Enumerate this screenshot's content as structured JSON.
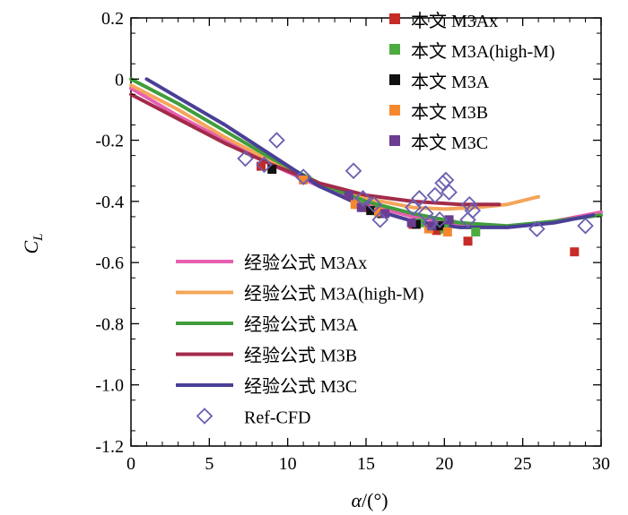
{
  "chart_data": {
    "type": "scatter",
    "xlabel_var": "α",
    "xlabel_unit": "/(°)",
    "ylabel_var": "C",
    "ylabel_sub": "L",
    "xlim": [
      0,
      30
    ],
    "ylim": [
      -1.2,
      0.2
    ],
    "xticks": [
      0,
      5,
      10,
      15,
      20,
      25,
      30
    ],
    "yticks": [
      -1.2,
      -1.0,
      -0.8,
      -0.6,
      -0.4,
      -0.2,
      0,
      0.2
    ],
    "ytick_labels": [
      "-1.2",
      "-1.0",
      "-0.8",
      "-0.6",
      "-0.4",
      "-0.2",
      "0",
      "0.2"
    ],
    "xtick_labels": [
      "0",
      "5",
      "10",
      "15",
      "20",
      "25",
      "30"
    ],
    "scatter_series": [
      {
        "name": "本文 M3Ax",
        "color": "#c62b27",
        "points": [
          [
            8.3,
            -0.285
          ],
          [
            14.9,
            -0.42
          ],
          [
            18.0,
            -0.475
          ],
          [
            19.5,
            -0.495
          ],
          [
            20.0,
            -0.49
          ],
          [
            21.5,
            -0.53
          ],
          [
            28.3,
            -0.565
          ]
        ]
      },
      {
        "name": "本文 M3A(high-M)",
        "color": "#4dac3f",
        "points": [
          [
            14.5,
            -0.41
          ],
          [
            15.5,
            -0.43
          ],
          [
            18.5,
            -0.47
          ],
          [
            20.0,
            -0.49
          ],
          [
            22.0,
            -0.5
          ]
        ]
      },
      {
        "name": "本文 M3A",
        "color": "#111111",
        "points": [
          [
            9.0,
            -0.295
          ],
          [
            15.3,
            -0.43
          ],
          [
            16.0,
            -0.44
          ],
          [
            18.2,
            -0.475
          ],
          [
            19.7,
            -0.48
          ]
        ]
      },
      {
        "name": "本文 M3B",
        "color": "#f5882e",
        "points": [
          [
            11.0,
            -0.33
          ],
          [
            14.3,
            -0.41
          ],
          [
            15.8,
            -0.435
          ],
          [
            19.0,
            -0.49
          ],
          [
            20.2,
            -0.5
          ]
        ]
      },
      {
        "name": "本文 M3C",
        "color": "#6a3d91",
        "points": [
          [
            13.9,
            -0.38
          ],
          [
            14.7,
            -0.42
          ],
          [
            16.2,
            -0.44
          ],
          [
            17.9,
            -0.47
          ],
          [
            19.2,
            -0.48
          ],
          [
            20.3,
            -0.46
          ]
        ]
      }
    ],
    "line_series": [
      {
        "name": "经验公式 M3Ax",
        "color": "#e75fb0",
        "x": [
          0,
          3,
          6,
          9,
          12,
          15,
          18,
          21,
          24,
          27,
          30
        ],
        "y": [
          -0.03,
          -0.12,
          -0.2,
          -0.28,
          -0.35,
          -0.41,
          -0.45,
          -0.475,
          -0.485,
          -0.465,
          -0.435
        ]
      },
      {
        "name": "经验公式 M3A(high-M)",
        "color": "#f5a55a",
        "x": [
          0,
          3,
          6,
          9,
          12,
          15,
          18,
          20,
          22,
          24,
          26
        ],
        "y": [
          -0.02,
          -0.1,
          -0.19,
          -0.27,
          -0.34,
          -0.39,
          -0.42,
          -0.425,
          -0.42,
          -0.41,
          -0.385
        ]
      },
      {
        "name": "经验公式 M3A",
        "color": "#3f9d3b",
        "x": [
          0,
          3,
          6,
          9,
          12,
          15,
          18,
          21,
          24,
          27,
          30
        ],
        "y": [
          0.0,
          -0.08,
          -0.17,
          -0.26,
          -0.34,
          -0.4,
          -0.44,
          -0.47,
          -0.48,
          -0.465,
          -0.445
        ]
      },
      {
        "name": "经验公式 M3B",
        "color": "#a32b4a",
        "x": [
          0,
          3,
          6,
          9,
          12,
          15,
          18,
          21,
          23.5
        ],
        "y": [
          -0.05,
          -0.13,
          -0.21,
          -0.28,
          -0.34,
          -0.38,
          -0.4,
          -0.41,
          -0.41
        ]
      },
      {
        "name": "经验公式 M3C",
        "color": "#4a3f96",
        "x": [
          1,
          3,
          6,
          9,
          12,
          15,
          18,
          21,
          24,
          27,
          29.5
        ],
        "y": [
          0.0,
          -0.06,
          -0.15,
          -0.25,
          -0.35,
          -0.42,
          -0.465,
          -0.485,
          -0.485,
          -0.47,
          -0.445
        ]
      }
    ],
    "ref_series": {
      "name": "Ref-CFD",
      "color": "#6a5fb0",
      "points": [
        [
          7.3,
          -0.26
        ],
        [
          8.5,
          -0.28
        ],
        [
          9.3,
          -0.2
        ],
        [
          11.0,
          -0.32
        ],
        [
          14.2,
          -0.3
        ],
        [
          14.8,
          -0.39
        ],
        [
          15.5,
          -0.41
        ],
        [
          15.9,
          -0.46
        ],
        [
          18.0,
          -0.42
        ],
        [
          18.4,
          -0.39
        ],
        [
          18.8,
          -0.44
        ],
        [
          19.1,
          -0.47
        ],
        [
          19.4,
          -0.38
        ],
        [
          19.7,
          -0.46
        ],
        [
          19.9,
          -0.34
        ],
        [
          20.1,
          -0.33
        ],
        [
          20.3,
          -0.37
        ],
        [
          21.6,
          -0.41
        ],
        [
          21.8,
          -0.43
        ],
        [
          21.5,
          -0.46
        ],
        [
          25.9,
          -0.49
        ],
        [
          29.0,
          -0.48
        ]
      ]
    }
  }
}
